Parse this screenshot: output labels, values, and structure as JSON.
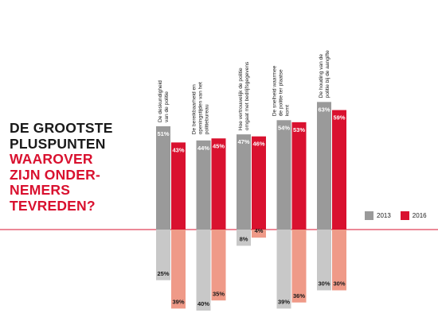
{
  "title_lines": {
    "line1": "DE GROOTSTE",
    "line2": "PLUSPUNTEN",
    "line3": "WAAROVER",
    "line4": "ZIJN ONDER-",
    "line5": "NEMERS",
    "line6": "TEVREDEN?"
  },
  "legend": {
    "y2013": "2013",
    "y2016": "2016"
  },
  "colors": {
    "up2013": "#9a9a9a",
    "up2016": "#d9112f",
    "down2013": "#c8c8c8",
    "down2016": "#ef9a88",
    "baseline": "#d9112f",
    "text_dark": "#1a1a1a",
    "text_white": "#ffffff"
  },
  "chart_data": {
    "type": "bar",
    "categories": [
      [
        "De deskundigheid",
        "van de politie"
      ],
      [
        "De bereikbaarheid en",
        "openingstijden van het",
        "politiebureau"
      ],
      [
        "Hoe vertrouwelijk de politie",
        "omgaat met bedrijfsgegevens"
      ],
      [
        "De snelheid waarmee",
        "de politie ter plaatse",
        "komt"
      ],
      [
        "De houding van de",
        "politie bij de aangifte"
      ]
    ],
    "series": [
      {
        "name": "2013",
        "positive": [
          51,
          44,
          47,
          54,
          63
        ],
        "negative": [
          25,
          40,
          8,
          39,
          30
        ]
      },
      {
        "name": "2016",
        "positive": [
          43,
          45,
          46,
          53,
          59
        ],
        "negative": [
          39,
          35,
          4,
          36,
          30
        ]
      }
    ],
    "value_suffix": "%"
  }
}
